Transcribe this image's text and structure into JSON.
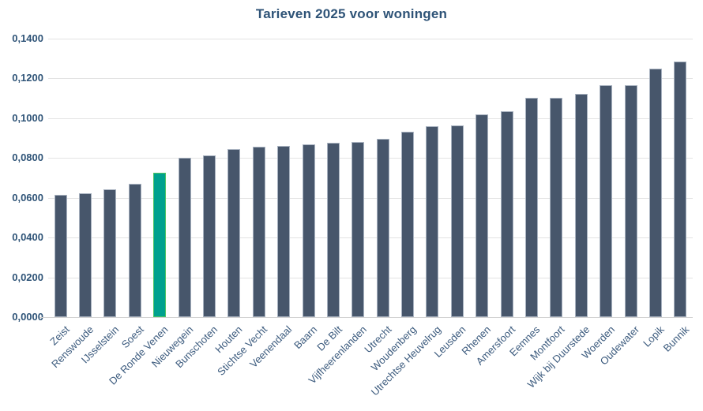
{
  "chart_data": {
    "type": "bar",
    "title": "Tarieven 2025 voor woningen",
    "categories": [
      "Zeist",
      "Renswoude",
      "IJsselstein",
      "Soest",
      "De Ronde Venen",
      "Nieuwegein",
      "Bunschoten",
      "Houten",
      "Stichtse Vecht",
      "Veenendaal",
      "Baarn",
      "De Bilt",
      "Vijfheerenlanden",
      "Utrecht",
      "Woudenberg",
      "Utrechtse Heuvelrug",
      "Leusden",
      "Rhenen",
      "Amersfoort",
      "Eemnes",
      "Montfoort",
      "Wijk bij Duurstede",
      "Woerden",
      "Oudewater",
      "Lopik",
      "Bunnik"
    ],
    "values": [
      0.0613,
      0.0621,
      0.0642,
      0.0669,
      0.0726,
      0.0801,
      0.081,
      0.0844,
      0.0857,
      0.0861,
      0.0867,
      0.0874,
      0.0878,
      0.0896,
      0.0932,
      0.0959,
      0.0962,
      0.1016,
      0.1035,
      0.1101,
      0.1101,
      0.1122,
      0.1165,
      0.1165,
      0.1248,
      0.1282
    ],
    "highlight_category": "De Ronde Venen",
    "xlabel": "",
    "ylabel": "",
    "ylim": [
      0,
      0.14
    ],
    "ytick_step": 0.02,
    "ytick_labels": [
      "0,0000",
      "0,0200",
      "0,0400",
      "0,0600",
      "0,0800",
      "0,1000",
      "0,1200",
      "0,1400"
    ],
    "grid": "horizontal",
    "legend_position": "none",
    "colors": {
      "bar_fill": "#47566B",
      "bar_border": "#A8B2C0",
      "highlight_fill": "#00A18E",
      "highlight_border": "#4EC463",
      "gridline": "#E3E3E3",
      "axis_line": "#D2D2D2",
      "title_text": "#2E5377",
      "ytick_text": "#2E5377",
      "xlabel_text": "#3C5B7E"
    }
  }
}
